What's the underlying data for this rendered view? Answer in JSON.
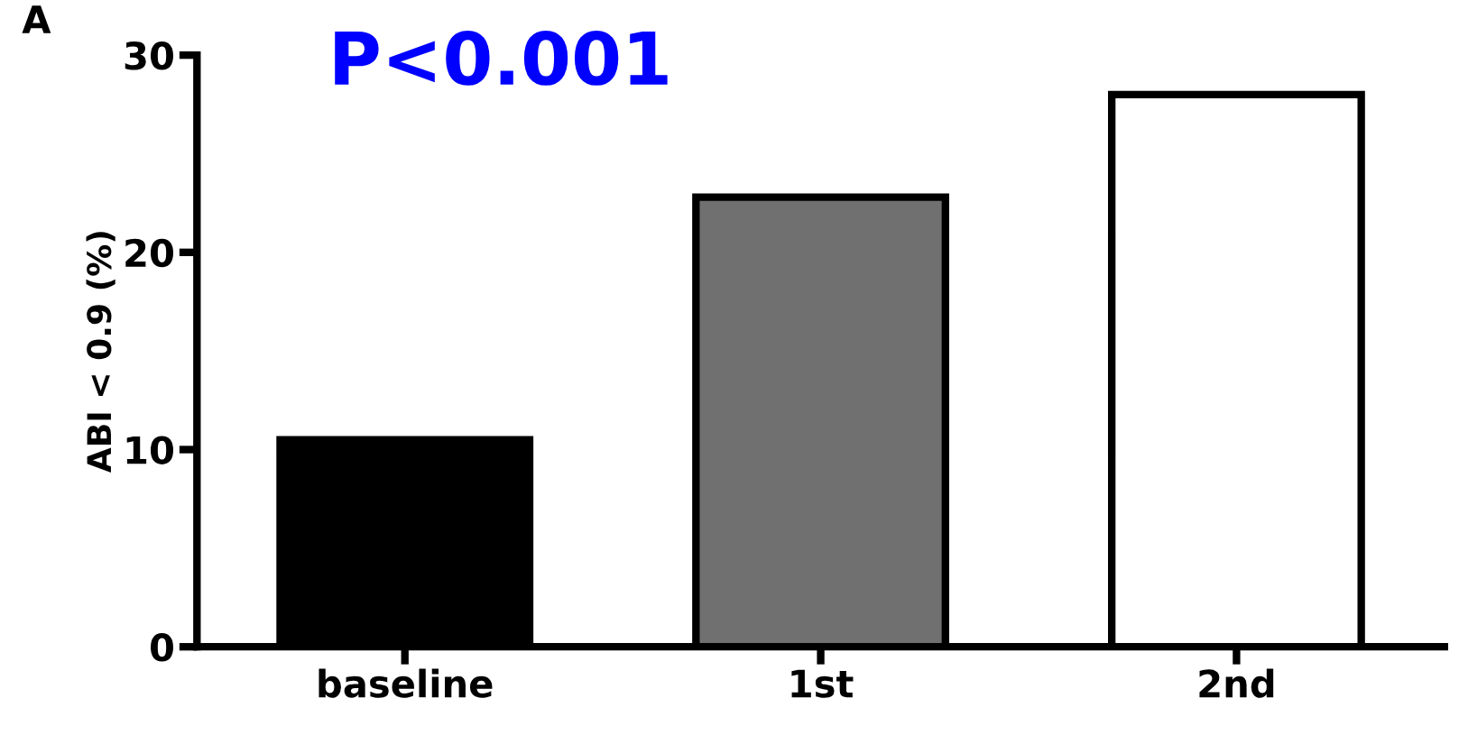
{
  "chart_data": {
    "type": "bar",
    "categories": [
      "baseline",
      "1st",
      "2nd"
    ],
    "values": [
      10.5,
      22.8,
      28.0
    ],
    "colors": [
      "#000000",
      "#707070",
      "#ffffff"
    ],
    "ylabel": "ABI < 0.9 (%)",
    "ylim": [
      0,
      30
    ],
    "yticks": [
      0,
      10,
      20,
      30
    ],
    "annotations": [
      "A",
      "P<0.001"
    ],
    "grid": false,
    "legend": false
  }
}
